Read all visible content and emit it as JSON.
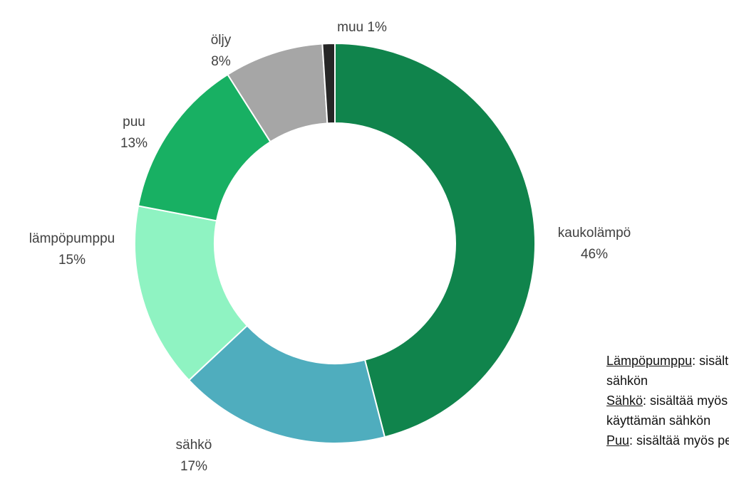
{
  "chart_data": {
    "type": "pie",
    "donut": true,
    "title": "",
    "categories": [
      "kaukolämpö",
      "sähkö",
      "lämpöpumppu",
      "puu",
      "öljy",
      "muu"
    ],
    "values": [
      46,
      17,
      15,
      13,
      8,
      1
    ],
    "value_labels": [
      "46%",
      "17%",
      "15%",
      "13%",
      "8%",
      "1%"
    ],
    "colors": [
      "#10844c",
      "#4fadbe",
      "#8ff3c2",
      "#18b063",
      "#a6a6a6",
      "#262626"
    ],
    "unit": "%"
  },
  "notes": {
    "heat_pump": {
      "term": "Lämpöpumppu",
      "text": ": sisältää myös pumppujen käyttämän",
      "cont": "sähkön"
    },
    "electricity": {
      "term": "Sähkö",
      "text": ": sisältää myös suorasähkö- ja varaavan lämmityksen",
      "cont": "käyttämän sähkön"
    },
    "wood": {
      "term": "Puu",
      "text": ": sisältää myös pelletit"
    }
  }
}
